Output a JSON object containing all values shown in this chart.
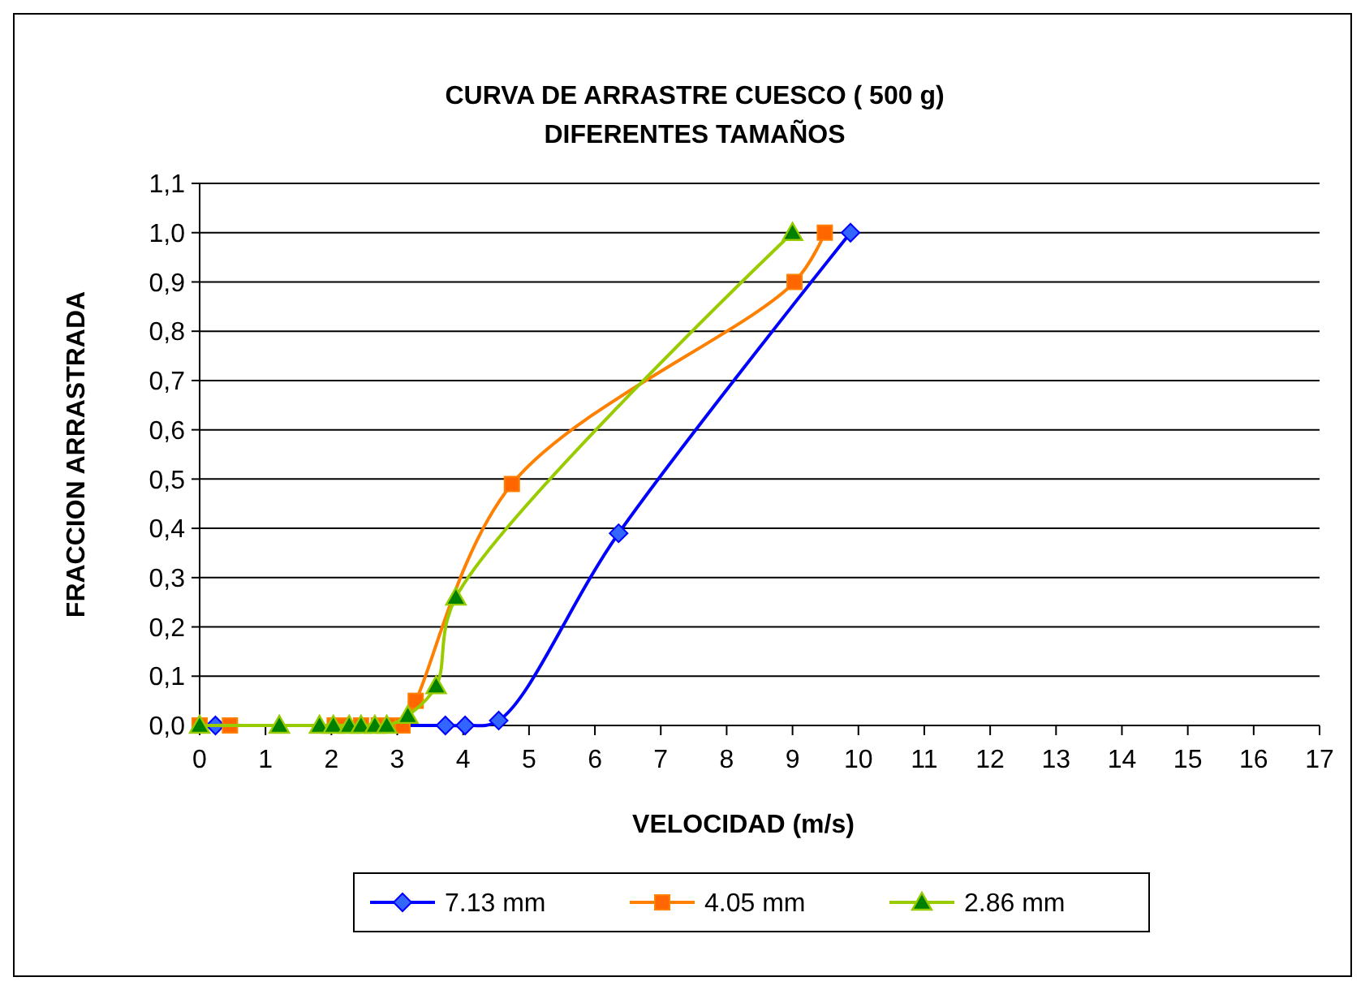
{
  "chart_data": {
    "type": "line",
    "title": "CURVA DE ARRASTRE CUESCO ( 500 g)\nDIFERENTES TAMAÑOS",
    "xlabel": "VELOCIDAD (m/s)",
    "ylabel": "FRACCION ARRASTRADA",
    "xlim": [
      0,
      17
    ],
    "xticks": [
      0,
      1,
      2,
      3,
      4,
      5,
      6,
      7,
      8,
      9,
      10,
      11,
      12,
      13,
      14,
      15,
      16,
      17
    ],
    "ylim": [
      0,
      1.1
    ],
    "yticks": [
      {
        "value": 0,
        "label": "0,0"
      },
      {
        "value": 0.1,
        "label": "0,1"
      },
      {
        "value": 0.2,
        "label": "0,2"
      },
      {
        "value": 0.3,
        "label": "0,3"
      },
      {
        "value": 0.4,
        "label": "0,4"
      },
      {
        "value": 0.5,
        "label": "0,5"
      },
      {
        "value": 0.6,
        "label": "0,6"
      },
      {
        "value": 0.7,
        "label": "0,7"
      },
      {
        "value": 0.8,
        "label": "0,8"
      },
      {
        "value": 0.9,
        "label": "0,9"
      },
      {
        "value": 1,
        "label": "1,0"
      },
      {
        "value": 1.1,
        "label": "1,1"
      }
    ],
    "grid": "y",
    "legend": "bottom",
    "line_style": "solid",
    "series": [
      {
        "name": "7.13 mm",
        "color": "#0000ff",
        "marker": "diamond",
        "x": [
          0.24,
          3.73,
          4.03,
          4.54,
          6.36,
          9.88
        ],
        "values": [
          0,
          0,
          0,
          0.01,
          0.39,
          1.0
        ]
      },
      {
        "name": "4.05 mm",
        "color": "#ff8000",
        "marker": "square",
        "x": [
          0,
          0.46,
          2.05,
          2.18,
          2.45,
          2.72,
          2.9,
          3.08,
          3.28,
          4.74,
          9.03,
          9.49
        ],
        "values": [
          0,
          0,
          0,
          0,
          0,
          0,
          0,
          0,
          0.05,
          0.49,
          0.9,
          1.0
        ]
      },
      {
        "name": "2.86 mm",
        "color": "#99cc00",
        "marker": "triangle",
        "x": [
          0,
          1.21,
          1.82,
          2.03,
          2.27,
          2.45,
          2.66,
          2.84,
          3.16,
          3.59,
          3.89,
          9.0
        ],
        "values": [
          0,
          0,
          0,
          0,
          0,
          0,
          0,
          0,
          0.02,
          0.08,
          0.26,
          1.0
        ]
      }
    ]
  }
}
